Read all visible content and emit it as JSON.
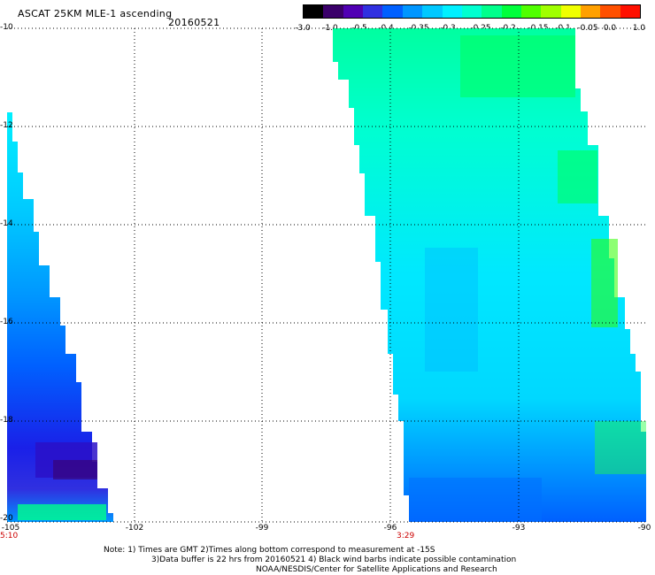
{
  "header": {
    "title": "ASCAT 25KM MLE-1 ascending",
    "date": "20160521"
  },
  "colorbar": {
    "colors": [
      "#000000",
      "#3a006a",
      "#5000b4",
      "#3030e0",
      "#0060ff",
      "#0096ff",
      "#00c8ff",
      "#00f0ff",
      "#00ffd0",
      "#00ff8c",
      "#00ff3c",
      "#50ff00",
      "#a0ff00",
      "#f0ff00",
      "#ffa000",
      "#ff5000",
      "#ff1000"
    ],
    "tick_labels": [
      "-3.0",
      "-1.0",
      "-0.5",
      "-0.4",
      "-0.35",
      "-0.3",
      "-0.25",
      "-0.2",
      "-0.15",
      "-0.1",
      "-0.05",
      "0.0",
      "1.0"
    ]
  },
  "axes": {
    "lat_labels": [
      "-10",
      "-12",
      "-14",
      "-16",
      "-18",
      "-20"
    ],
    "lon_labels": [
      "-105",
      "-102",
      "-99",
      "-96",
      "-93",
      "-90"
    ],
    "times": [
      "5:10",
      "3:29"
    ]
  },
  "notes": {
    "line1": "Note: 1) Times are GMT 2)Times along bottom correspond to measurement at -15S",
    "line2": "3)Data buffer is 22 hrs from 20160521 4) Black wind barbs indicate possible contamination",
    "line3": "NOAA/NESDIS/Center for Satellite Applications and Research"
  }
}
